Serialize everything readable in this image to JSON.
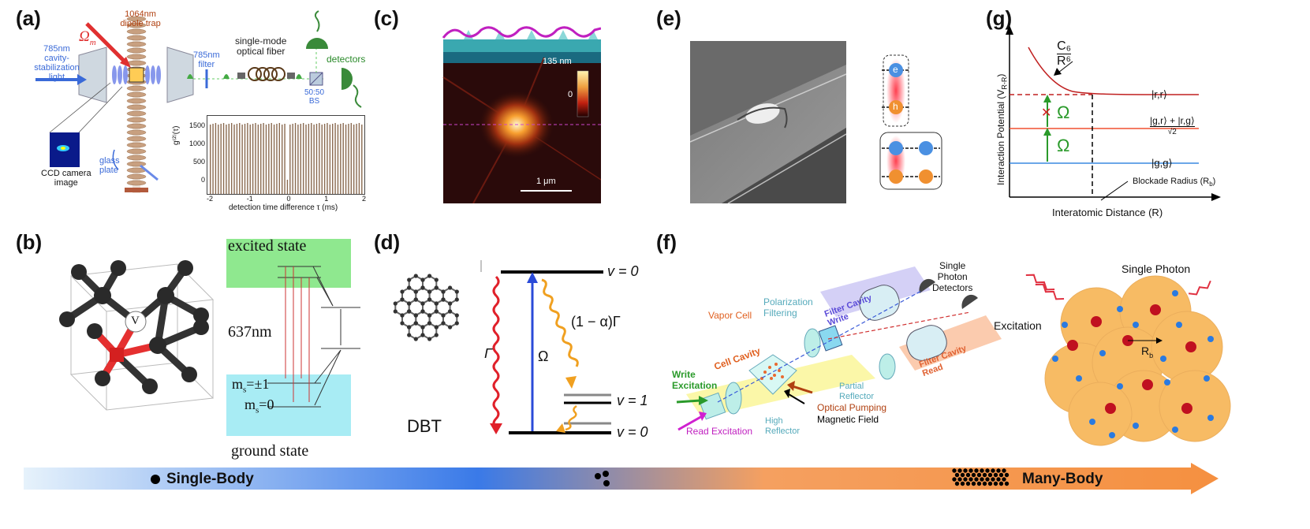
{
  "panels": {
    "a": {
      "label": "(a)",
      "trap": "1064nm\ndipole trap",
      "omega": "Ω",
      "omega_sub": "m",
      "cavity_light": "785nm\ncavity-\nstabilization\nlight",
      "filter": "785nm\nfilter",
      "fiber": "single-mode\noptical fiber",
      "detectors": "detectors",
      "bs": "50:50\nBS",
      "ccd": "CCD camera\nimage",
      "glass": "glass\nplate",
      "ylabel": "g⁽²⁾(τ)",
      "xlabel": "detection time difference τ (ms)",
      "yticks": [
        "0",
        "500",
        "1000",
        "1500"
      ],
      "xticks": [
        "-2",
        "-1",
        "0",
        "1",
        "2"
      ]
    },
    "b": {
      "label": "(b)",
      "vacancy": "V",
      "excited": "excited state",
      "wavelength": "637nm",
      "ms1": "m",
      "ms1_sub": "s",
      "ms1_val": "=±1",
      "ms0": "m",
      "ms0_sub": "s",
      "ms0_val": "=0",
      "ground": "ground state"
    },
    "c": {
      "label": "(c)",
      "scale_max": "135 nm",
      "scale_min": "0",
      "scalebar": "1 μm"
    },
    "d": {
      "label": "(d)",
      "molecule": "DBT",
      "v0_top": "v = 0",
      "v1": "v = 1",
      "v0_bot": "v = 0",
      "gamma": "Γ",
      "omega": "Ω",
      "alpha": "(1 − α)Γ"
    },
    "e": {
      "label": "(e)",
      "e": "e",
      "h": "h"
    },
    "f": {
      "label": "(f)",
      "single_photon_detectors": "Single\nPhoton\nDetectors",
      "vapor_cell": "Vapor Cell",
      "polarization": "Polarization\nFiltering",
      "filter_write": "Filter Cavity\nWrite",
      "filter_read": "Filter Cavity\nRead",
      "cell_cavity": "Cell Cavity",
      "partial": "Partial\nReflector",
      "write_exc": "Write\nExcitation",
      "read_exc": "Read Excitation",
      "high": "High\nReflector",
      "optical": "Optical Pumping",
      "magnetic": "Magnetic Field",
      "single_photon": "Single Photon",
      "excitation": "Excitation",
      "rb": "R",
      "rb_sub": "b"
    },
    "g": {
      "label": "(g)",
      "c6": "C₆",
      "r6": "R⁶",
      "ylabel": "Interaction Potential (V",
      "ylabel_sub": "R-R",
      "ylabel_end": ")",
      "xlabel": "Interatomic Distance (R)",
      "rr": "|r,r⟩",
      "gr_num": "|g,r⟩ + |r,g⟩",
      "gr_den": "√2",
      "gg": "|g,g⟩",
      "omega1": "Ω",
      "omega2": "Ω",
      "cross": "✕",
      "blockade": "Blockade Radius (R",
      "blockade_sub": "b",
      "blockade_end": ")"
    }
  },
  "arrow": {
    "single": "Single-Body",
    "many": "Many-Body"
  }
}
